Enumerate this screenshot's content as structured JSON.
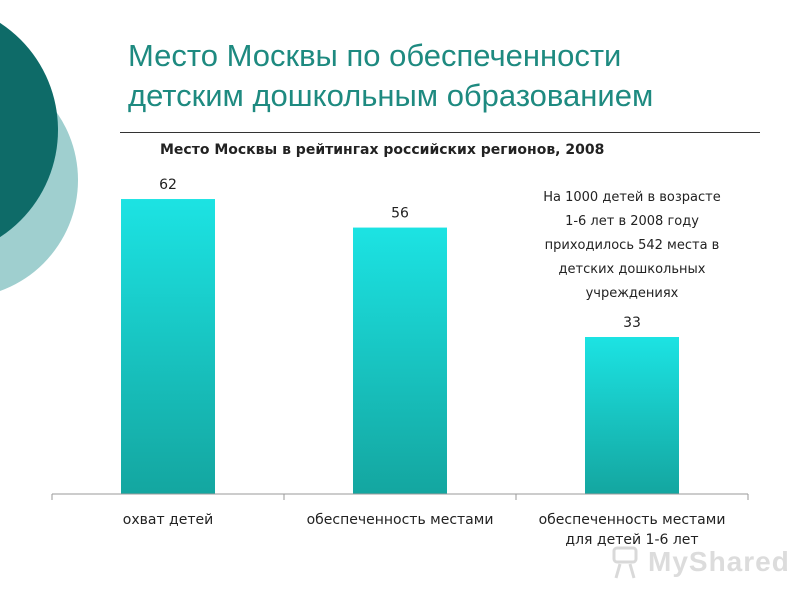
{
  "slide": {
    "title_lines": [
      "Место Москвы по обеспеченности",
      "детским дошкольным образованием"
    ]
  },
  "annotation_lines": [
    "На 1000 детей в возрасте",
    "1-6 лет в 2008 году",
    "приходилось 542 места в",
    "детских дошкольных",
    "учреждениях"
  ],
  "watermark": {
    "text": "MyShared"
  },
  "colors": {
    "title": "#1e8a80",
    "bar_top": "#1ce3e3",
    "bar_bottom": "#14a6a0",
    "deco_dark": "#0e6b68",
    "deco_light": "#9fcfcf"
  },
  "chart_data": {
    "type": "bar",
    "title": "Место Москвы в рейтингах российских регионов, 2008",
    "categories": [
      [
        "охват детей"
      ],
      [
        "обеспеченность местами"
      ],
      [
        "обеспеченность местами",
        "для детей 1-6 лет"
      ]
    ],
    "values": [
      62,
      56,
      33
    ],
    "ylim": [
      0,
      66
    ],
    "grid": false,
    "legend": "none",
    "data_labels": true
  }
}
